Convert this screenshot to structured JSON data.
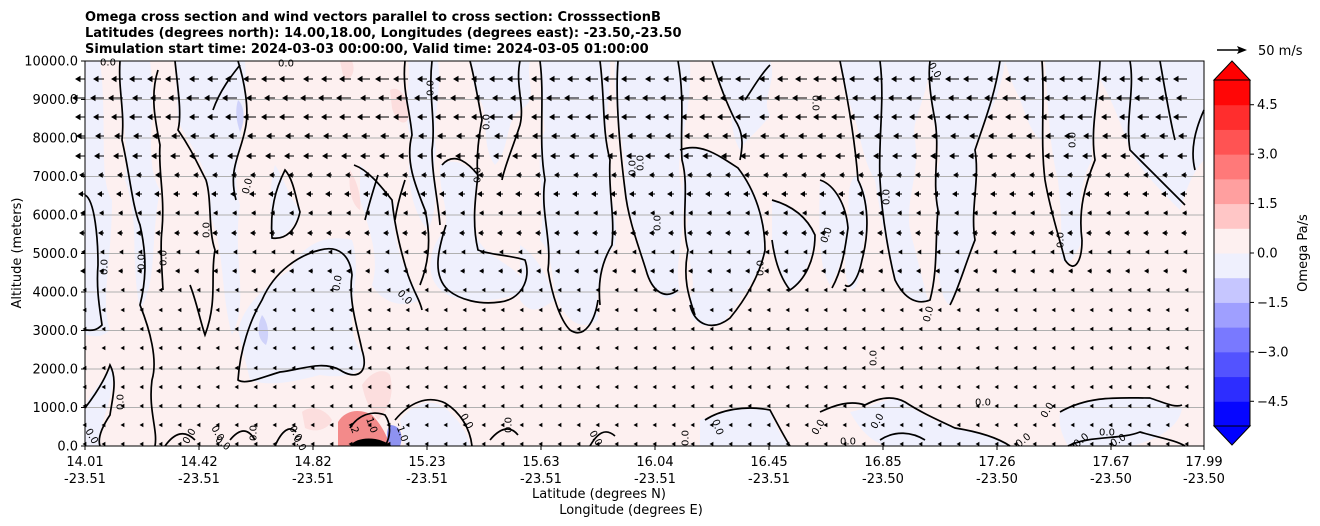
{
  "chart_data": {
    "type": "contourf",
    "title_lines": [
      "Omega cross section and wind vectors parallel to cross section: CrosssectionB",
      "Latitudes (degrees north): 14.00,18.00, Longitudes (degrees east): -23.50,-23.50",
      "Simulation start time: 2024-03-03 00:00:00, Valid time: 2024-03-05 01:00:00"
    ],
    "xlabel": "Latitude (degrees N)",
    "xlabel2": "Longitude (degrees E)",
    "ylabel": "Altitude (meters)",
    "ylim": [
      0,
      10000
    ],
    "yticks": [
      "0.0",
      "1000.0",
      "2000.0",
      "3000.0",
      "4000.0",
      "5000.0",
      "6000.0",
      "7000.0",
      "8000.0",
      "9000.0",
      "10000.0"
    ],
    "xticks_lat": [
      "14.01",
      "14.42",
      "14.82",
      "15.23",
      "15.63",
      "16.04",
      "16.45",
      "16.85",
      "17.26",
      "17.67",
      "17.99"
    ],
    "xticks_lon": [
      "-23.51",
      "-23.51",
      "-23.51",
      "-23.51",
      "-23.51",
      "-23.51",
      "-23.51",
      "-23.50",
      "-23.50",
      "-23.50",
      "-23.50"
    ],
    "grid": "horizontal",
    "contour_label": "0.0",
    "extra_contour_labels": [
      "1.0",
      "2",
      "-1.0"
    ],
    "colorbar": {
      "label": "Omega Pa/s",
      "range": [
        -5.25,
        5.25
      ],
      "ticks": [
        "4.5",
        "3.0",
        "1.5",
        "0.0",
        "−1.5",
        "−3.0",
        "−4.5"
      ],
      "ticks_values": [
        4.5,
        3.0,
        1.5,
        0.0,
        -1.5,
        -3.0,
        -4.5
      ],
      "extend": "both",
      "colormap": "bwr"
    },
    "quiver_key": "50 m/s",
    "field_colors": {
      "positive": "#fdf0f0",
      "negative": "#eff0fd"
    }
  }
}
